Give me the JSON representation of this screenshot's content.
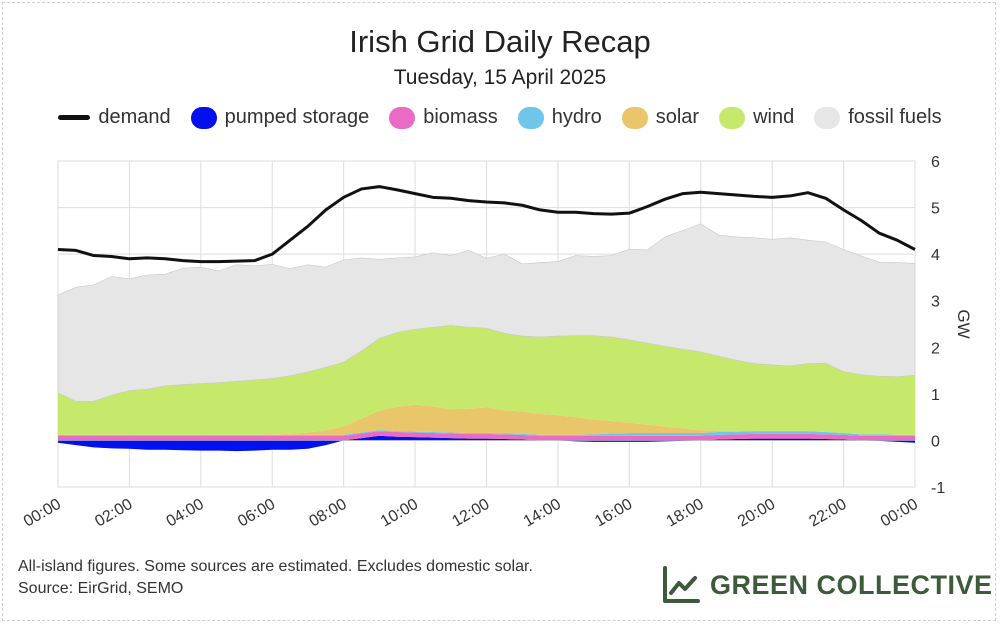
{
  "chart_data": {
    "type": "area",
    "title": "Irish Grid Daily Recap",
    "subtitle": "Tuesday, 15 April 2025",
    "ylabel": "GW",
    "ylim": [
      -1,
      6
    ],
    "yticks": [
      -1,
      0,
      1,
      2,
      3,
      4,
      5,
      6
    ],
    "xlim": [
      0,
      24
    ],
    "xticks": [
      "00:00",
      "02:00",
      "04:00",
      "06:00",
      "08:00",
      "10:00",
      "12:00",
      "14:00",
      "16:00",
      "18:00",
      "20:00",
      "22:00",
      "00:00"
    ],
    "x": [
      0,
      0.5,
      1,
      1.5,
      2,
      2.5,
      3,
      3.5,
      4,
      4.5,
      5,
      5.5,
      6,
      6.5,
      7,
      7.5,
      8,
      8.5,
      9,
      9.5,
      10,
      10.5,
      11,
      11.5,
      12,
      12.5,
      13,
      13.5,
      14,
      14.5,
      15,
      15.5,
      16,
      16.5,
      17,
      17.5,
      18,
      18.5,
      19,
      19.5,
      20,
      20.5,
      21,
      21.5,
      22,
      22.5,
      23,
      23.5,
      24
    ],
    "series": [
      {
        "name": "pumped storage",
        "color": "#0010ee",
        "values": [
          -0.05,
          -0.1,
          -0.15,
          -0.17,
          -0.18,
          -0.2,
          -0.2,
          -0.21,
          -0.22,
          -0.22,
          -0.23,
          -0.22,
          -0.2,
          -0.2,
          -0.18,
          -0.1,
          0,
          0.05,
          0.1,
          0.08,
          0.07,
          0.06,
          0.05,
          0.04,
          0.04,
          0.03,
          0.02,
          0,
          0,
          -0.02,
          -0.03,
          -0.03,
          -0.03,
          -0.03,
          -0.02,
          -0.01,
          0,
          0.02,
          0.03,
          0.04,
          0.04,
          0.04,
          0.04,
          0.03,
          0.02,
          0,
          -0.01,
          -0.03,
          -0.05
        ]
      },
      {
        "name": "biomass",
        "color": "#e96bc3",
        "values": [
          0.1,
          0.1,
          0.1,
          0.1,
          0.1,
          0.1,
          0.1,
          0.1,
          0.1,
          0.1,
          0.1,
          0.1,
          0.1,
          0.1,
          0.1,
          0.1,
          0.1,
          0.1,
          0.1,
          0.1,
          0.1,
          0.1,
          0.1,
          0.1,
          0.1,
          0.1,
          0.1,
          0.1,
          0.1,
          0.1,
          0.1,
          0.1,
          0.1,
          0.1,
          0.1,
          0.1,
          0.1,
          0.1,
          0.1,
          0.1,
          0.1,
          0.1,
          0.1,
          0.1,
          0.1,
          0.1,
          0.1,
          0.1,
          0.1
        ]
      },
      {
        "name": "hydro",
        "color": "#6ec6ea",
        "values": [
          0.02,
          0.02,
          0.02,
          0.02,
          0.02,
          0.02,
          0.02,
          0.02,
          0.02,
          0.02,
          0.02,
          0.02,
          0.02,
          0.02,
          0.02,
          0.02,
          0.02,
          0.02,
          0.02,
          0.02,
          0.02,
          0.02,
          0.02,
          0.02,
          0.02,
          0.02,
          0.02,
          0.02,
          0.02,
          0.02,
          0.03,
          0.05,
          0.06,
          0.06,
          0.06,
          0.06,
          0.06,
          0.06,
          0.06,
          0.06,
          0.06,
          0.06,
          0.06,
          0.05,
          0.04,
          0.03,
          0.03,
          0.02,
          0.02
        ]
      },
      {
        "name": "solar",
        "color": "#eac66b",
        "values": [
          0,
          0,
          0,
          0,
          0,
          0,
          0,
          0,
          0,
          0,
          0,
          0,
          0.01,
          0.02,
          0.05,
          0.1,
          0.18,
          0.3,
          0.42,
          0.52,
          0.58,
          0.55,
          0.5,
          0.52,
          0.55,
          0.5,
          0.48,
          0.45,
          0.42,
          0.38,
          0.32,
          0.27,
          0.22,
          0.18,
          0.14,
          0.1,
          0.06,
          0.03,
          0.01,
          0,
          0,
          0,
          0,
          0,
          0,
          0,
          0,
          0,
          0
        ]
      },
      {
        "name": "wind",
        "color": "#c6e96b",
        "values": [
          0.9,
          0.72,
          0.72,
          0.85,
          0.95,
          0.98,
          1.05,
          1.08,
          1.1,
          1.12,
          1.15,
          1.18,
          1.2,
          1.25,
          1.3,
          1.35,
          1.38,
          1.45,
          1.55,
          1.6,
          1.62,
          1.7,
          1.8,
          1.75,
          1.7,
          1.65,
          1.62,
          1.65,
          1.7,
          1.75,
          1.8,
          1.8,
          1.78,
          1.75,
          1.72,
          1.7,
          1.68,
          1.6,
          1.52,
          1.45,
          1.42,
          1.4,
          1.45,
          1.48,
          1.32,
          1.28,
          1.25,
          1.25,
          1.28
        ]
      },
      {
        "name": "fossil fuels",
        "color": "#e6e6e6",
        "values": [
          2.1,
          2.45,
          2.5,
          2.55,
          2.4,
          2.45,
          2.4,
          2.5,
          2.5,
          2.4,
          2.5,
          2.45,
          2.45,
          2.3,
          2.3,
          2.15,
          2.2,
          2.0,
          1.7,
          1.6,
          1.55,
          1.6,
          1.5,
          1.65,
          1.5,
          1.7,
          1.55,
          1.6,
          1.6,
          1.72,
          1.7,
          1.75,
          1.95,
          2.0,
          2.35,
          2.55,
          2.75,
          2.6,
          2.65,
          2.7,
          2.7,
          2.75,
          2.65,
          2.6,
          2.62,
          2.55,
          2.45,
          2.45,
          2.4
        ]
      }
    ],
    "demand": {
      "name": "demand",
      "color": "#111111",
      "values": [
        4.1,
        4.08,
        3.97,
        3.95,
        3.9,
        3.92,
        3.9,
        3.86,
        3.84,
        3.84,
        3.85,
        3.86,
        4.0,
        4.3,
        4.6,
        4.95,
        5.22,
        5.4,
        5.45,
        5.38,
        5.3,
        5.22,
        5.2,
        5.15,
        5.12,
        5.1,
        5.05,
        4.95,
        4.9,
        4.9,
        4.87,
        4.86,
        4.88,
        5.02,
        5.18,
        5.3,
        5.33,
        5.3,
        5.27,
        5.24,
        5.22,
        5.25,
        5.32,
        5.2,
        4.95,
        4.72,
        4.45,
        4.3,
        4.1
      ]
    },
    "legend": [
      {
        "name": "demand",
        "color": "#111111",
        "kind": "line"
      },
      {
        "name": "pumped storage",
        "color": "#0010ee",
        "kind": "area"
      },
      {
        "name": "biomass",
        "color": "#e96bc3",
        "kind": "area"
      },
      {
        "name": "hydro",
        "color": "#6ec6ea",
        "kind": "area"
      },
      {
        "name": "solar",
        "color": "#eac66b",
        "kind": "area"
      },
      {
        "name": "wind",
        "color": "#c6e96b",
        "kind": "area"
      },
      {
        "name": "fossil fuels",
        "color": "#e6e6e6",
        "kind": "area"
      }
    ]
  },
  "footnote": {
    "line1": "All-island figures. Some sources are estimated. Excludes domestic solar.",
    "line2": "Source: EirGrid, SEMO"
  },
  "brand": {
    "name": "GREEN COLLECTIVE",
    "icon": "line-chart-icon",
    "color": "#3d5a3a"
  }
}
